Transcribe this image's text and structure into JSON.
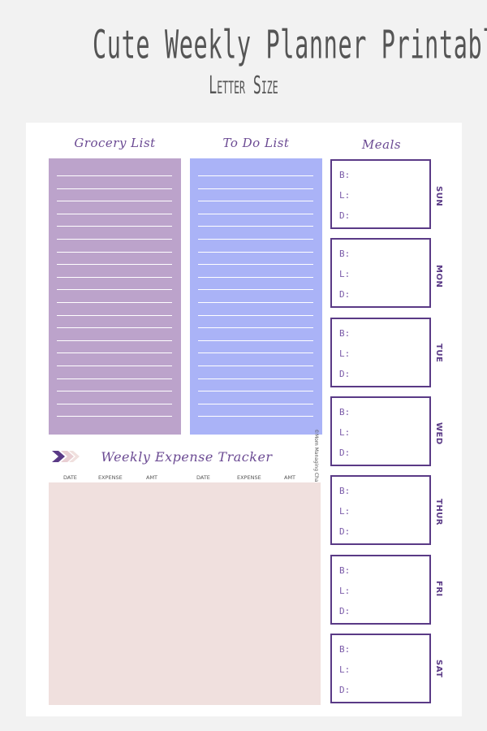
{
  "title": "Cute Weekly Planner Printable",
  "subtitle": "Letter Size",
  "grocery": {
    "heading": "Grocery List",
    "color": "#bca3cb"
  },
  "todo": {
    "heading": "To Do List",
    "color": "#aab3f7"
  },
  "meals": {
    "heading": "Meals",
    "labels": {
      "b": "B:",
      "l": "L:",
      "d": "D:"
    },
    "days": [
      "SUN",
      "MON",
      "TUE",
      "WED",
      "THUR",
      "FRI",
      "SAT"
    ]
  },
  "expense": {
    "heading": "Weekly Expense Tracker",
    "columns": [
      "DATE",
      "EXPENSE",
      "AMT",
      "DATE",
      "EXPENSE",
      "AMT"
    ],
    "color": "#f0e0de"
  },
  "credit": "©Mom Managing Chaos",
  "colors": {
    "accent": "#5a3a86",
    "heading": "#6b4a93"
  }
}
